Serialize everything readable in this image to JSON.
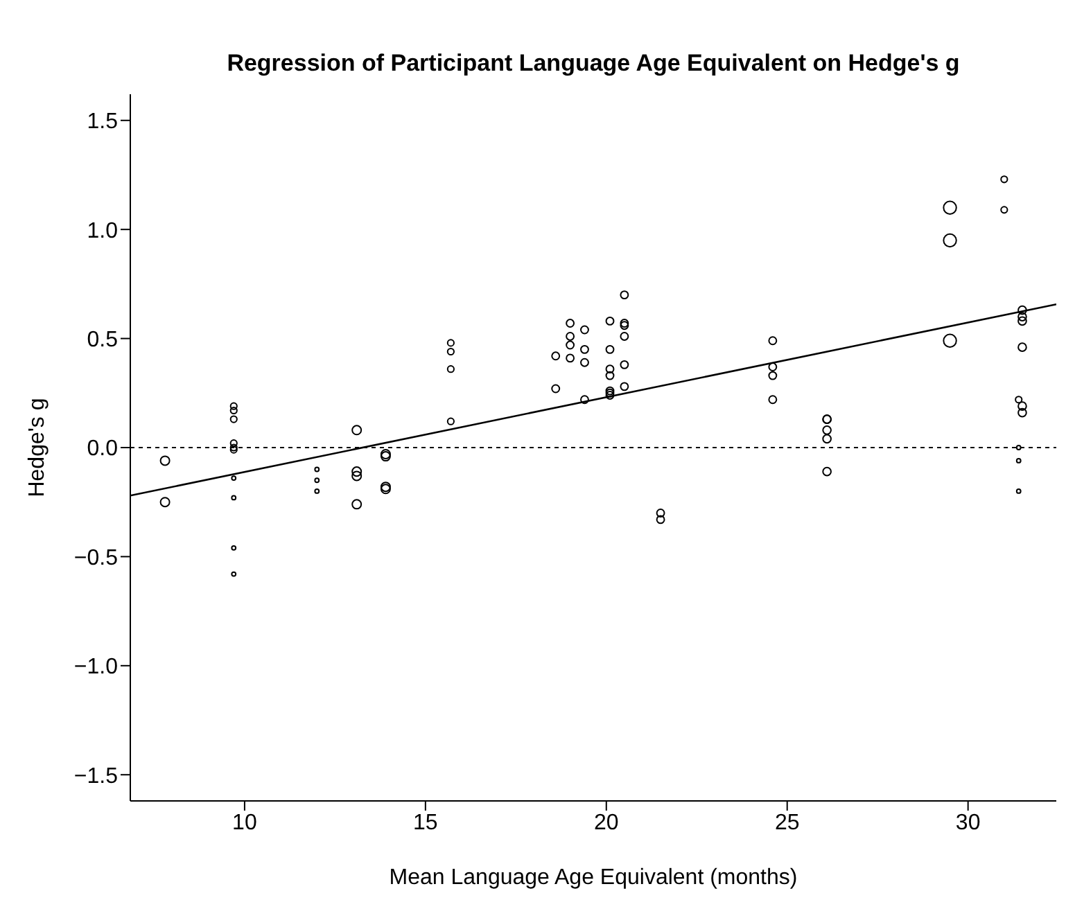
{
  "chart_data": {
    "type": "bubble",
    "title": "Regression of Participant Language Age Equivalent on Hedge's g",
    "xlabel": "Mean Language Age Equivalent (months)",
    "ylabel": "Hedge's g",
    "xlim": [
      6.84,
      32.44
    ],
    "xticks": [
      10,
      15,
      20,
      25,
      30
    ],
    "ylim": [
      -1.62,
      1.62
    ],
    "yticks": [
      -1.5,
      {
        "value": -1,
        "label": "−1.0"
      },
      -0.5,
      {
        "value": 0,
        "label": "0.0"
      },
      0.5,
      {
        "value": 1,
        "label": "1.0"
      },
      1.5
    ],
    "ref_lines": [
      {
        "axis": "y",
        "value": 0,
        "color": "#000000",
        "line_style": "dotted"
      }
    ],
    "series": [
      {
        "marker": "circle",
        "color": "#000000",
        "x": [
          7.8,
          7.8,
          9.7,
          9.7,
          9.7,
          9.7,
          9.7,
          9.7,
          9.7,
          9.7,
          9.7,
          9.7,
          12.0,
          12.0,
          12.0,
          13.1,
          13.1,
          13.1,
          13.1,
          13.9,
          13.9,
          13.9,
          13.9,
          15.7,
          15.7,
          15.7,
          15.7,
          18.6,
          18.6,
          19.0,
          19.0,
          19.0,
          19.0,
          19.4,
          19.4,
          19.4,
          19.4,
          20.1,
          20.1,
          20.1,
          20.1,
          20.1,
          20.1,
          20.1,
          20.5,
          20.5,
          20.5,
          20.5,
          20.5,
          20.5,
          21.5,
          21.5,
          24.6,
          24.6,
          24.6,
          24.6,
          26.1,
          26.1,
          26.1,
          26.1,
          26.1,
          29.5,
          29.5,
          29.5,
          31.0,
          31.0,
          31.5,
          31.5,
          31.5,
          31.5,
          31.5,
          31.5,
          31.4,
          31.4,
          31.4,
          31.4
        ],
        "values": [
          -0.06,
          -0.25,
          0.19,
          0.17,
          0.13,
          0.02,
          0.0,
          -0.01,
          -0.14,
          -0.23,
          -0.46,
          -0.58,
          -0.1,
          -0.15,
          -0.2,
          0.08,
          -0.11,
          -0.13,
          -0.26,
          -0.03,
          -0.04,
          -0.18,
          -0.19,
          0.48,
          0.44,
          0.36,
          0.12,
          0.42,
          0.27,
          0.57,
          0.51,
          0.47,
          0.41,
          0.54,
          0.45,
          0.39,
          0.22,
          0.58,
          0.45,
          0.36,
          0.33,
          0.26,
          0.25,
          0.24,
          0.7,
          0.57,
          0.56,
          0.51,
          0.38,
          0.28,
          -0.3,
          -0.33,
          0.49,
          0.37,
          0.33,
          0.22,
          0.13,
          0.13,
          0.08,
          0.04,
          -0.11,
          1.1,
          0.95,
          0.49,
          1.23,
          1.09,
          0.63,
          0.6,
          0.58,
          0.46,
          0.19,
          0.16,
          0.22,
          0.0,
          -0.06,
          -0.2
        ],
        "sizes": [
          0.5,
          0.5,
          0.25,
          0.25,
          0.25,
          0.25,
          0.25,
          0.25,
          0.1,
          0.1,
          0.1,
          0.1,
          0.1,
          0.1,
          0.1,
          0.5,
          0.5,
          0.5,
          0.5,
          0.5,
          0.5,
          0.5,
          0.5,
          0.25,
          0.25,
          0.25,
          0.25,
          0.35,
          0.35,
          0.35,
          0.35,
          0.35,
          0.35,
          0.35,
          0.35,
          0.35,
          0.35,
          0.35,
          0.35,
          0.35,
          0.35,
          0.35,
          0.35,
          0.35,
          0.35,
          0.35,
          0.35,
          0.35,
          0.35,
          0.35,
          0.35,
          0.35,
          0.35,
          0.35,
          0.35,
          0.35,
          0.4,
          0.4,
          0.4,
          0.4,
          0.4,
          1,
          1,
          1,
          0.25,
          0.25,
          0.4,
          0.4,
          0.4,
          0.4,
          0.4,
          0.4,
          0.25,
          0.1,
          0.1,
          0.1
        ]
      },
      {
        "type": "line",
        "color": "#000000",
        "x": [
          6.84,
          32.44
        ],
        "values": [
          -0.22,
          0.657
        ]
      }
    ]
  }
}
